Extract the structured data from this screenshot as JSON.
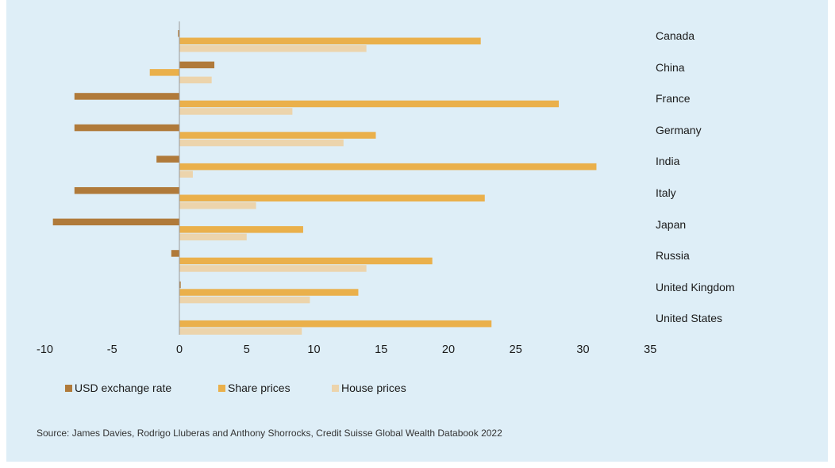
{
  "chart_data": {
    "type": "bar",
    "orientation": "horizontal",
    "categories": [
      "Canada",
      "China",
      "France",
      "Germany",
      "India",
      "Italy",
      "Japan",
      "Russia",
      "United Kingdom",
      "United States"
    ],
    "series": [
      {
        "name": "USD exchange rate",
        "color": "#b07a3a",
        "values": [
          -0.1,
          2.6,
          -7.8,
          -7.8,
          -1.7,
          -7.8,
          -9.4,
          -0.6,
          0.1,
          0.0
        ]
      },
      {
        "name": "Share prices",
        "color": "#eab04b",
        "values": [
          22.4,
          -2.2,
          28.2,
          14.6,
          31.0,
          22.7,
          9.2,
          18.8,
          13.3,
          23.2
        ]
      },
      {
        "name": "House prices",
        "color": "#ecd4ac",
        "values": [
          13.9,
          2.4,
          8.4,
          12.2,
          1.0,
          5.7,
          5.0,
          13.9,
          9.7,
          9.1
        ]
      }
    ],
    "x_ticks": [
      "-10",
      "-5",
      "0",
      "5",
      "10",
      "15",
      "20",
      "25",
      "30",
      "35"
    ],
    "xlim": [
      -10,
      35
    ],
    "legend_position": "bottom-left",
    "grid": false
  },
  "source": "Source: James Davies, Rodrigo Lluberas and Anthony Shorrocks, Credit Suisse Global Wealth Databook 2022"
}
